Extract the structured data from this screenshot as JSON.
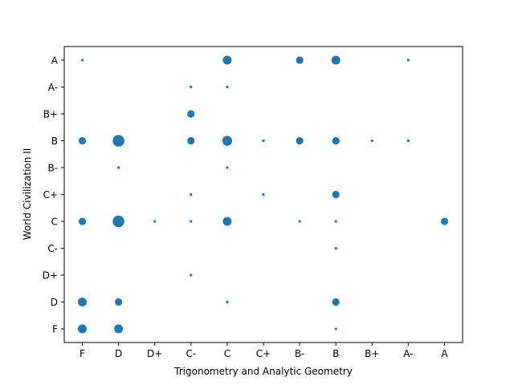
{
  "chart_data": {
    "type": "scatter",
    "title": "",
    "xlabel": "Trigonometry and Analytic Geometry",
    "ylabel": "World Civilization II",
    "x_categories": [
      "F",
      "D",
      "D+",
      "C-",
      "C",
      "C+",
      "B-",
      "B",
      "B+",
      "A-",
      "A"
    ],
    "y_categories": [
      "F",
      "D",
      "D+",
      "C-",
      "C",
      "C+",
      "B-",
      "B",
      "B+",
      "A-",
      "A"
    ],
    "grid": false,
    "legend": "none",
    "marker_color": "#1f77b4",
    "points": [
      {
        "x": "F",
        "y": "A",
        "count": 1
      },
      {
        "x": "F",
        "y": "B",
        "count": 2
      },
      {
        "x": "F",
        "y": "C",
        "count": 2
      },
      {
        "x": "F",
        "y": "D",
        "count": 3
      },
      {
        "x": "F",
        "y": "F",
        "count": 3
      },
      {
        "x": "D",
        "y": "B",
        "count": 6
      },
      {
        "x": "D",
        "y": "B-",
        "count": 1
      },
      {
        "x": "D",
        "y": "C",
        "count": 6
      },
      {
        "x": "D",
        "y": "D",
        "count": 2
      },
      {
        "x": "D",
        "y": "F",
        "count": 3
      },
      {
        "x": "D+",
        "y": "C",
        "count": 1
      },
      {
        "x": "C-",
        "y": "A-",
        "count": 1
      },
      {
        "x": "C-",
        "y": "B+",
        "count": 2
      },
      {
        "x": "C-",
        "y": "B",
        "count": 2
      },
      {
        "x": "C-",
        "y": "C+",
        "count": 1
      },
      {
        "x": "C-",
        "y": "C",
        "count": 1
      },
      {
        "x": "C-",
        "y": "D+",
        "count": 1
      },
      {
        "x": "C",
        "y": "A",
        "count": 3
      },
      {
        "x": "C",
        "y": "A-",
        "count": 1
      },
      {
        "x": "C",
        "y": "B",
        "count": 4
      },
      {
        "x": "C",
        "y": "B-",
        "count": 1
      },
      {
        "x": "C",
        "y": "C",
        "count": 3
      },
      {
        "x": "C",
        "y": "D",
        "count": 1
      },
      {
        "x": "C+",
        "y": "B",
        "count": 1
      },
      {
        "x": "C+",
        "y": "C+",
        "count": 1
      },
      {
        "x": "B-",
        "y": "A",
        "count": 2
      },
      {
        "x": "B-",
        "y": "B",
        "count": 2
      },
      {
        "x": "B-",
        "y": "C",
        "count": 1
      },
      {
        "x": "B",
        "y": "A",
        "count": 3
      },
      {
        "x": "B",
        "y": "B",
        "count": 2
      },
      {
        "x": "B",
        "y": "C+",
        "count": 2
      },
      {
        "x": "B",
        "y": "C",
        "count": 1
      },
      {
        "x": "B",
        "y": "C-",
        "count": 1
      },
      {
        "x": "B",
        "y": "D",
        "count": 2
      },
      {
        "x": "B",
        "y": "F",
        "count": 1
      },
      {
        "x": "B+",
        "y": "B",
        "count": 1
      },
      {
        "x": "A-",
        "y": "A",
        "count": 1
      },
      {
        "x": "A-",
        "y": "B",
        "count": 1
      },
      {
        "x": "A",
        "y": "C",
        "count": 2
      }
    ]
  }
}
